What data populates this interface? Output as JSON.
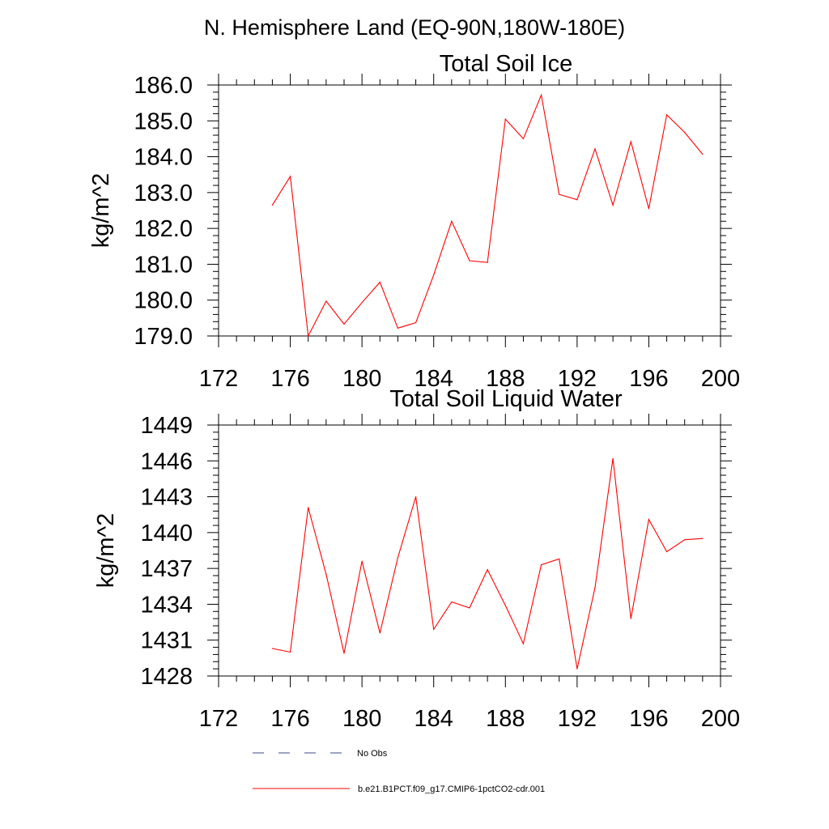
{
  "main_title": "N. Hemisphere Land (EQ-90N,180W-180E)",
  "legend": [
    {
      "label": "No Obs",
      "style": "dashed",
      "color": "#3d4a8a"
    },
    {
      "label": "b.e21.B1PCT.f09_g17.CMIP6-1pctCO2-cdr.001",
      "style": "solid",
      "color": "#ff0000"
    }
  ],
  "chart_data": [
    {
      "type": "line",
      "title": "Total Soil Ice",
      "ylabel": "kg/m^2",
      "xlim": [
        172,
        200
      ],
      "x_ticks": [
        "172",
        "176",
        "180",
        "184",
        "188",
        "192",
        "196",
        "200"
      ],
      "ylim": [
        179.0,
        186.0
      ],
      "y_ticks": [
        "179.0",
        "180.0",
        "181.0",
        "182.0",
        "183.0",
        "184.0",
        "185.0",
        "186.0"
      ],
      "series": [
        {
          "color": "#ff0000",
          "x": [
            175,
            176,
            177,
            178,
            179,
            180,
            181,
            182,
            183,
            184,
            185,
            186,
            187,
            188,
            189,
            190,
            191,
            192,
            193,
            194,
            195,
            196,
            197,
            198,
            199
          ],
          "values": [
            182.65,
            183.45,
            179.0,
            179.97,
            179.33,
            179.93,
            180.5,
            179.22,
            179.37,
            180.7,
            182.2,
            181.1,
            181.05,
            185.05,
            184.5,
            185.72,
            182.95,
            182.8,
            184.22,
            182.65,
            184.42,
            182.55,
            185.17,
            184.68,
            184.07
          ]
        }
      ]
    },
    {
      "type": "line",
      "title": "Total Soil Liquid Water",
      "ylabel": "kg/m^2",
      "xlim": [
        172,
        200
      ],
      "x_ticks": [
        "172",
        "176",
        "180",
        "184",
        "188",
        "192",
        "196",
        "200"
      ],
      "ylim": [
        1428,
        1449
      ],
      "y_ticks": [
        "1428",
        "1431",
        "1434",
        "1437",
        "1440",
        "1443",
        "1446",
        "1449"
      ],
      "series": [
        {
          "color": "#ff0000",
          "x": [
            175,
            176,
            177,
            178,
            179,
            180,
            181,
            182,
            183,
            184,
            185,
            186,
            187,
            188,
            189,
            190,
            191,
            192,
            193,
            194,
            195,
            196,
            197,
            198,
            199
          ],
          "values": [
            1430.3,
            1430.0,
            1442.1,
            1436.5,
            1429.9,
            1437.6,
            1431.6,
            1437.9,
            1443.0,
            1431.9,
            1434.2,
            1433.7,
            1436.9,
            1433.9,
            1430.7,
            1437.3,
            1437.8,
            1428.6,
            1435.4,
            1446.2,
            1432.8,
            1441.1,
            1438.4,
            1439.4,
            1439.5
          ]
        }
      ]
    }
  ]
}
